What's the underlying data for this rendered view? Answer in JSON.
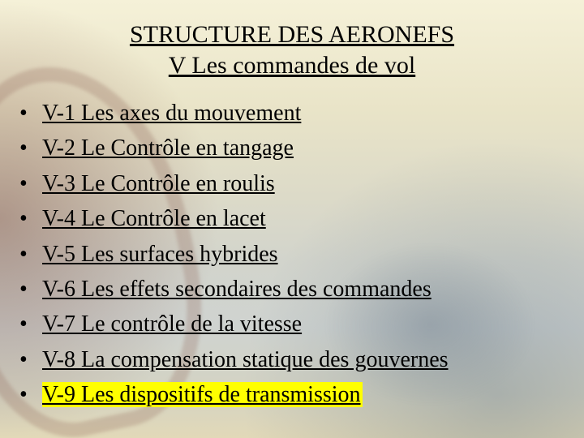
{
  "title": {
    "main": "STRUCTURE DES AERONEFS",
    "sub": "V Les commandes de vol"
  },
  "items": [
    {
      "label": "V-1 Les axes du mouvement",
      "highlight": false
    },
    {
      "label": "V-2 Le Contrôle en tangage",
      "highlight": false
    },
    {
      "label": "V-3 Le Contrôle en roulis",
      "highlight": false
    },
    {
      "label": "V-4 Le Contrôle en lacet",
      "highlight": false
    },
    {
      "label": "V-5 Les surfaces hybrides",
      "highlight": false
    },
    {
      "label": "V-6 Les effets secondaires des commandes",
      "highlight": false
    },
    {
      "label": "V-7 Le contrôle de la vitesse",
      "highlight": false
    },
    {
      "label": "V-8 La compensation statique des gouvernes",
      "highlight": false
    },
    {
      "label": "V-9 Les dispositifs de transmission",
      "highlight": true
    }
  ],
  "style": {
    "highlight_color": "#ffff00",
    "text_color": "#000000",
    "title_fontsize": 30,
    "item_fontsize": 28,
    "font_family": "Times New Roman",
    "slide_width": 720,
    "slide_height": 540
  }
}
